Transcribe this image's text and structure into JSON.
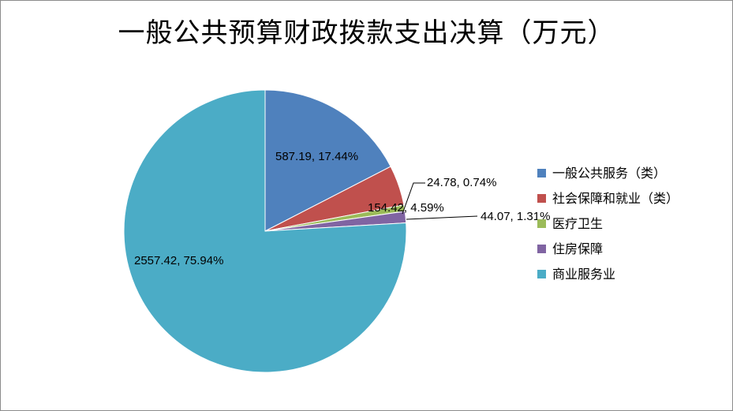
{
  "chart_data": {
    "type": "pie",
    "title": "一般公共预算财政拨款支出决算（万元）",
    "slices": [
      {
        "name": "一般公共服务（类）",
        "value": 587.19,
        "percent": 17.44,
        "label": "587.19, 17.44%",
        "color": "#4f81bd"
      },
      {
        "name": "社会保障和就业（类）",
        "value": 154.42,
        "percent": 4.59,
        "label": "154.42, 4.59%",
        "color": "#c0504d"
      },
      {
        "name": "医疗卫生",
        "value": 24.78,
        "percent": 0.74,
        "label": "24.78, 0.74%",
        "color": "#9bbb59"
      },
      {
        "name": "住房保障",
        "value": 44.07,
        "percent": 1.31,
        "label": "44.07, 1.31%",
        "color": "#8064a2"
      },
      {
        "name": "商业服务业",
        "value": 2557.42,
        "percent": 75.94,
        "label": "2557.42, 75.94%",
        "color": "#4bacc6"
      }
    ],
    "legend_position": "right"
  }
}
